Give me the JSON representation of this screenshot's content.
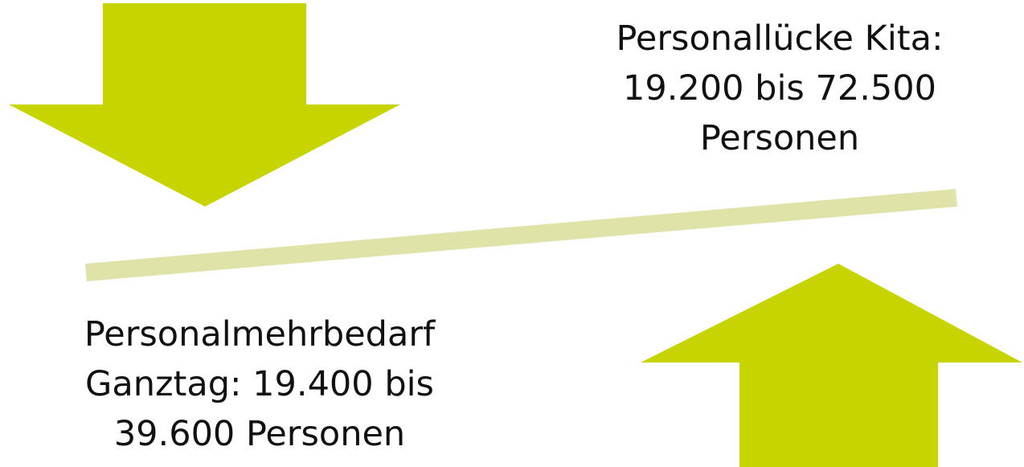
{
  "labels": {
    "top_right": [
      "Personallücke Kita:",
      "19.200 bis 72.500",
      "Personen"
    ],
    "bottom_left": [
      "Personalmehrbedarf",
      "Ganztag: 19.400 bis",
      "39.600 Personen"
    ]
  }
}
